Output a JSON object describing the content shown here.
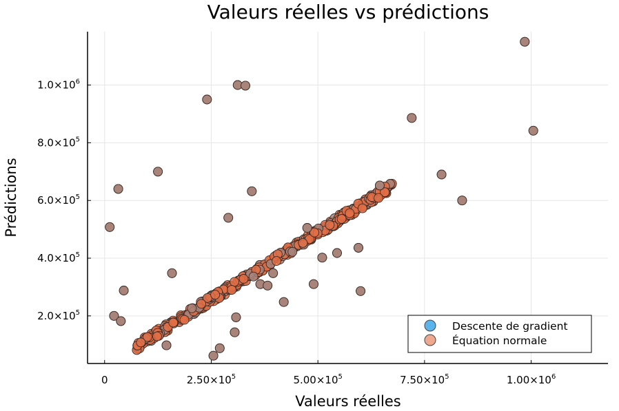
{
  "chart_data": {
    "type": "scatter",
    "title": "Valeurs réelles vs prédictions",
    "xlabel": "Valeurs réelles",
    "ylabel": "Prédictions",
    "xlim": [
      -40000,
      1180000
    ],
    "ylim": [
      35000,
      1185000
    ],
    "grid": true,
    "legend_position": "bottom-right",
    "x_ticks": [
      {
        "value": 0,
        "base": "0",
        "exp": ""
      },
      {
        "value": 250000,
        "base": "2.50×10",
        "exp": "5"
      },
      {
        "value": 500000,
        "base": "5.00×10",
        "exp": "5"
      },
      {
        "value": 750000,
        "base": "7.50×10",
        "exp": "5"
      },
      {
        "value": 1000000,
        "base": "1.00×10",
        "exp": "6"
      }
    ],
    "y_ticks": [
      {
        "value": 200000,
        "base": "2.0×10",
        "exp": "5"
      },
      {
        "value": 400000,
        "base": "4.0×10",
        "exp": "5"
      },
      {
        "value": 600000,
        "base": "6.0×10",
        "exp": "5"
      },
      {
        "value": 800000,
        "base": "8.0×10",
        "exp": "5"
      },
      {
        "value": 1000000,
        "base": "1.0×10",
        "exp": "6"
      }
    ],
    "series": [
      {
        "name": "Descente de gradient",
        "color": "#5bb4ec",
        "points": [
          [
            12000,
            508000
          ],
          [
            22000,
            200000
          ],
          [
            32000,
            640000
          ],
          [
            38000,
            182000
          ],
          [
            45000,
            288000
          ],
          [
            125000,
            700000
          ],
          [
            145000,
            98000
          ],
          [
            158000,
            348000
          ],
          [
            240000,
            950000
          ],
          [
            255000,
            62000
          ],
          [
            270000,
            88000
          ],
          [
            290000,
            540000
          ],
          [
            305000,
            143000
          ],
          [
            308000,
            195000
          ],
          [
            312000,
            1000000
          ],
          [
            330000,
            998000
          ],
          [
            345000,
            632000
          ],
          [
            365000,
            310000
          ],
          [
            382000,
            305000
          ],
          [
            395000,
            348000
          ],
          [
            490000,
            310000
          ],
          [
            510000,
            402000
          ],
          [
            545000,
            418000
          ],
          [
            595000,
            436000
          ],
          [
            600000,
            286000
          ],
          [
            645000,
            652000
          ],
          [
            720000,
            886000
          ],
          [
            790000,
            690000
          ],
          [
            838000,
            600000
          ],
          [
            985000,
            1150000
          ],
          [
            1005000,
            842000
          ],
          [
            420000,
            248000
          ],
          [
            475000,
            505000
          ]
        ]
      },
      {
        "name": "Équation normale",
        "color": "#e26f46",
        "points": [
          [
            12000,
            508000
          ],
          [
            22000,
            200000
          ],
          [
            32000,
            640000
          ],
          [
            38000,
            182000
          ],
          [
            45000,
            288000
          ],
          [
            125000,
            700000
          ],
          [
            145000,
            98000
          ],
          [
            158000,
            348000
          ],
          [
            240000,
            950000
          ],
          [
            255000,
            62000
          ],
          [
            270000,
            88000
          ],
          [
            290000,
            540000
          ],
          [
            305000,
            143000
          ],
          [
            308000,
            195000
          ],
          [
            312000,
            1000000
          ],
          [
            330000,
            998000
          ],
          [
            345000,
            632000
          ],
          [
            365000,
            310000
          ],
          [
            382000,
            305000
          ],
          [
            395000,
            348000
          ],
          [
            490000,
            310000
          ],
          [
            510000,
            402000
          ],
          [
            545000,
            418000
          ],
          [
            595000,
            436000
          ],
          [
            600000,
            286000
          ],
          [
            645000,
            652000
          ],
          [
            720000,
            886000
          ],
          [
            790000,
            690000
          ],
          [
            838000,
            600000
          ],
          [
            985000,
            1150000
          ],
          [
            1005000,
            842000
          ],
          [
            420000,
            248000
          ],
          [
            475000,
            505000
          ]
        ]
      }
    ],
    "band": {
      "x_start": 75000,
      "x_end": 675000,
      "y_at_start": 95000,
      "y_at_end": 652000,
      "spread": 14000,
      "count": 420,
      "colors": [
        "#e26f46",
        "#a8847b"
      ]
    },
    "overlap_color": "#a8847b"
  }
}
